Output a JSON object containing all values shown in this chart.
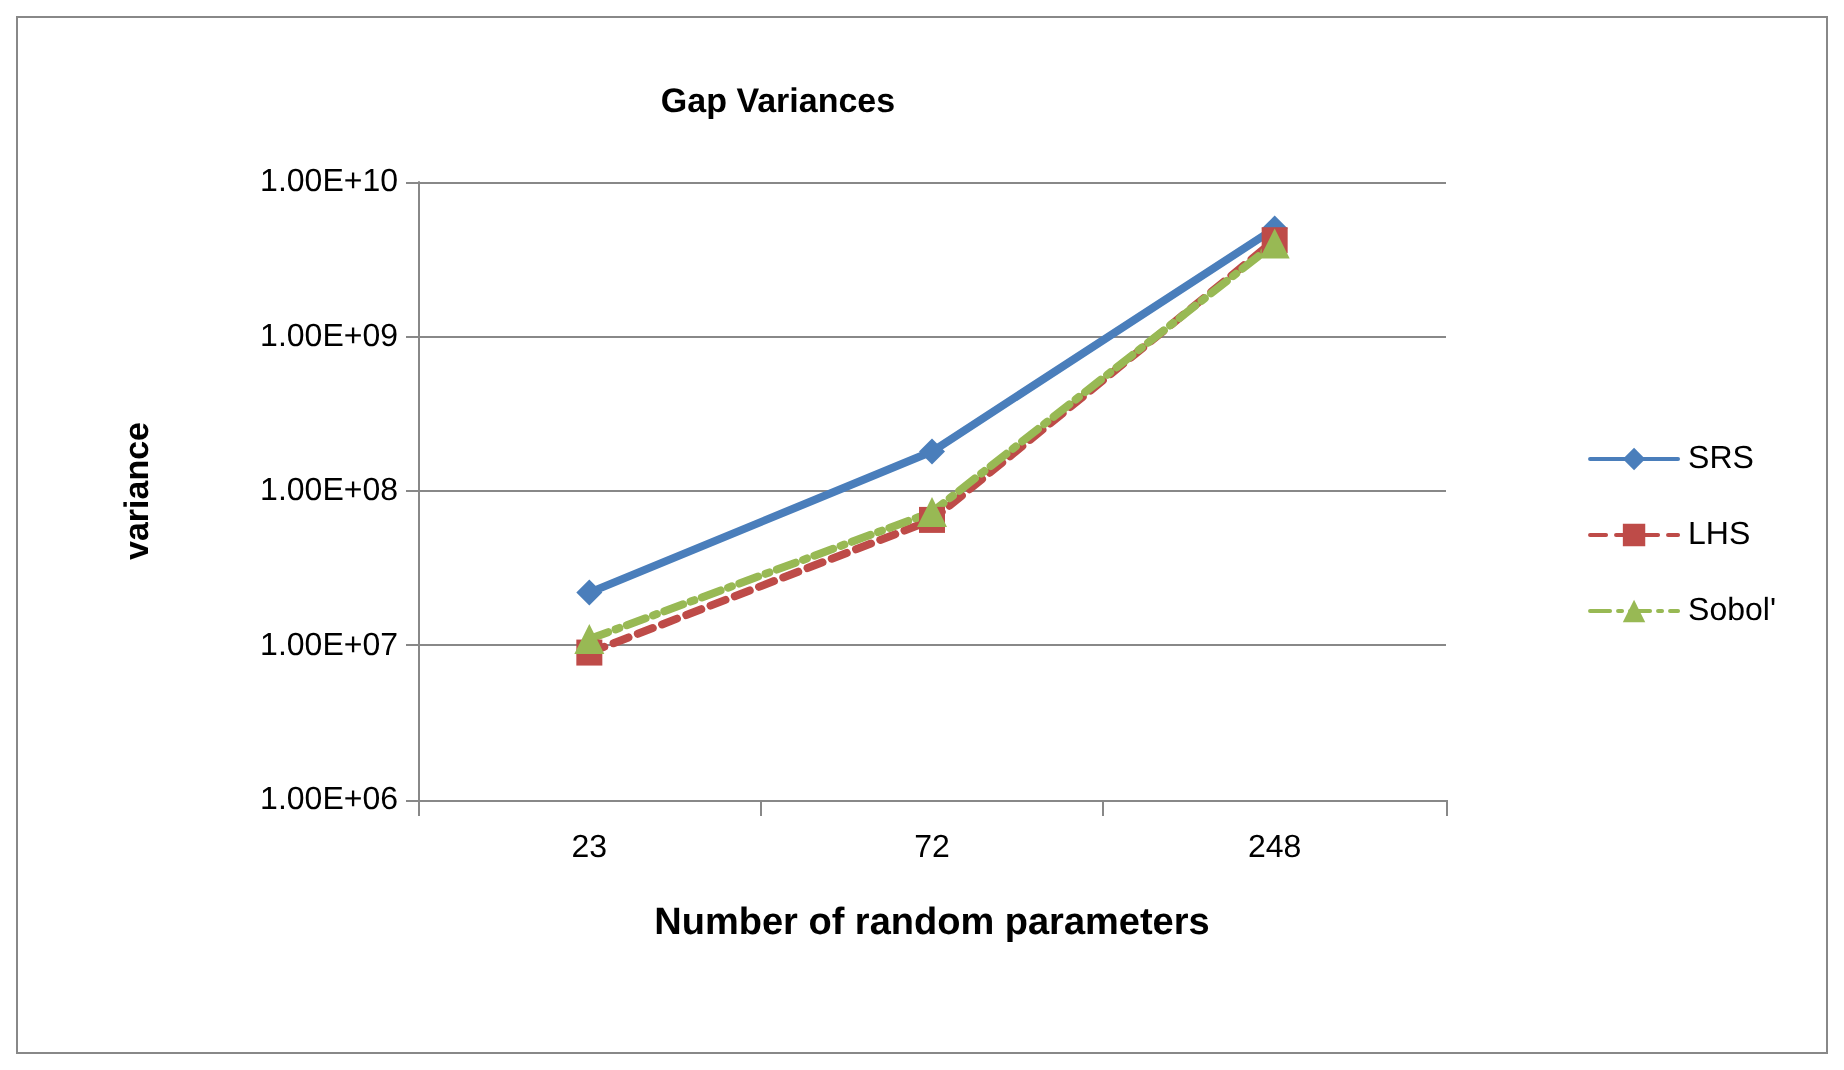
{
  "chart_data": {
    "type": "line",
    "title": "Gap Variances",
    "xlabel": "Number of random parameters",
    "ylabel": "variance",
    "categories": [
      "23",
      "72",
      "248"
    ],
    "series": [
      {
        "name": "SRS",
        "color": "#4a7ebb",
        "values": [
          22000000,
          180000000,
          5000000000
        ],
        "marker": "diamond",
        "line_style": "solid"
      },
      {
        "name": "LHS",
        "color": "#be4b48",
        "values": [
          9000000,
          65000000,
          4200000000
        ],
        "marker": "square",
        "line_style": "dashed"
      },
      {
        "name": "Sobol'",
        "color": "#98b954",
        "values": [
          11000000,
          73000000,
          4000000000
        ],
        "marker": "triangle",
        "line_style": "dotted"
      }
    ],
    "log": "y",
    "ylim": [
      1000000,
      10000000000
    ],
    "yticks": [
      {
        "value": 1000000,
        "label": "1.00E+06"
      },
      {
        "value": 10000000,
        "label": "1.00E+07"
      },
      {
        "value": 100000000,
        "label": "1.00E+08"
      },
      {
        "value": 1000000000,
        "label": "1.00E+09"
      },
      {
        "value": 10000000000,
        "label": "1.00E+10"
      }
    ],
    "grid": "y",
    "legend": "right"
  }
}
